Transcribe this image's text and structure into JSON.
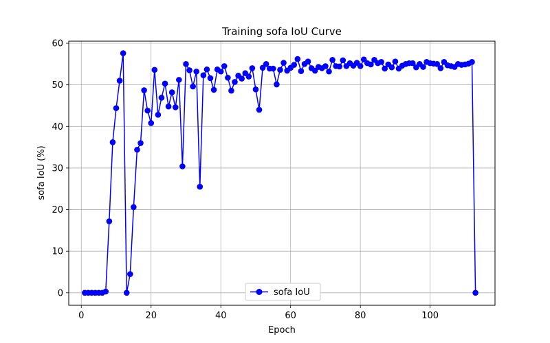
{
  "chart_data": {
    "type": "line",
    "title": "Training sofa IoU Curve",
    "xlabel": "Epoch",
    "ylabel": "sofa IoU (%)",
    "xlim": [
      -3.6,
      118.6
    ],
    "ylim": [
      -3,
      60.5
    ],
    "xticks": [
      0,
      20,
      40,
      60,
      80,
      100
    ],
    "yticks": [
      0,
      10,
      20,
      30,
      40,
      50,
      60
    ],
    "grid": true,
    "legend": "bottom-center",
    "series": [
      {
        "name": "sofa IoU",
        "color": "#0000ff",
        "marker": "circle",
        "x": [
          1,
          2,
          3,
          4,
          5,
          6,
          7,
          8,
          9,
          10,
          11,
          12,
          13,
          14,
          15,
          16,
          17,
          18,
          19,
          20,
          21,
          22,
          23,
          24,
          25,
          26,
          27,
          28,
          29,
          30,
          31,
          32,
          33,
          34,
          35,
          36,
          37,
          38,
          39,
          40,
          41,
          42,
          43,
          44,
          45,
          46,
          47,
          48,
          49,
          50,
          51,
          52,
          53,
          54,
          55,
          56,
          57,
          58,
          59,
          60,
          61,
          62,
          63,
          64,
          65,
          66,
          67,
          68,
          69,
          70,
          71,
          72,
          73,
          74,
          75,
          76,
          77,
          78,
          79,
          80,
          81,
          82,
          83,
          84,
          85,
          86,
          87,
          88,
          89,
          90,
          91,
          92,
          93,
          94,
          95,
          96,
          97,
          98,
          99,
          100,
          101,
          102,
          103,
          104,
          105,
          106,
          107,
          108,
          109,
          110,
          111,
          112,
          113
        ],
        "y": [
          0,
          0,
          0,
          0,
          0,
          0,
          0.3,
          17.2,
          36.2,
          44.4,
          51,
          57.6,
          0,
          4.5,
          20.6,
          34.4,
          36,
          48.7,
          43.8,
          40.8,
          53.6,
          42.8,
          46.9,
          50.3,
          44.8,
          48.2,
          44.6,
          51.2,
          30.4,
          55,
          53.5,
          49.6,
          53.2,
          25.5,
          52.3,
          53.7,
          51.6,
          48.8,
          53.7,
          53.2,
          54.5,
          51.7,
          48.6,
          50.7,
          52.2,
          51.5,
          52.8,
          52,
          54,
          48.9,
          44,
          54.1,
          55,
          53.9,
          53.9,
          50.1,
          53.6,
          55.3,
          53.4,
          54.1,
          54.8,
          56.2,
          53.3,
          55,
          55.6,
          54,
          53.4,
          54.3,
          54,
          54.5,
          53.2,
          56,
          54.5,
          54.4,
          55.9,
          54.5,
          55.2,
          54.6,
          55.3,
          54.5,
          56.1,
          55.2,
          54.9,
          56,
          55.2,
          55.5,
          53.9,
          54.9,
          54.2,
          55.6,
          53.9,
          54.6,
          55,
          55.2,
          55.2,
          54.2,
          55,
          54.3,
          55.5,
          55.2,
          55.1,
          55,
          54,
          55.5,
          54.7,
          54.5,
          54.3,
          55,
          54.8,
          54.9,
          55.1,
          55.5,
          0
        ]
      }
    ]
  }
}
